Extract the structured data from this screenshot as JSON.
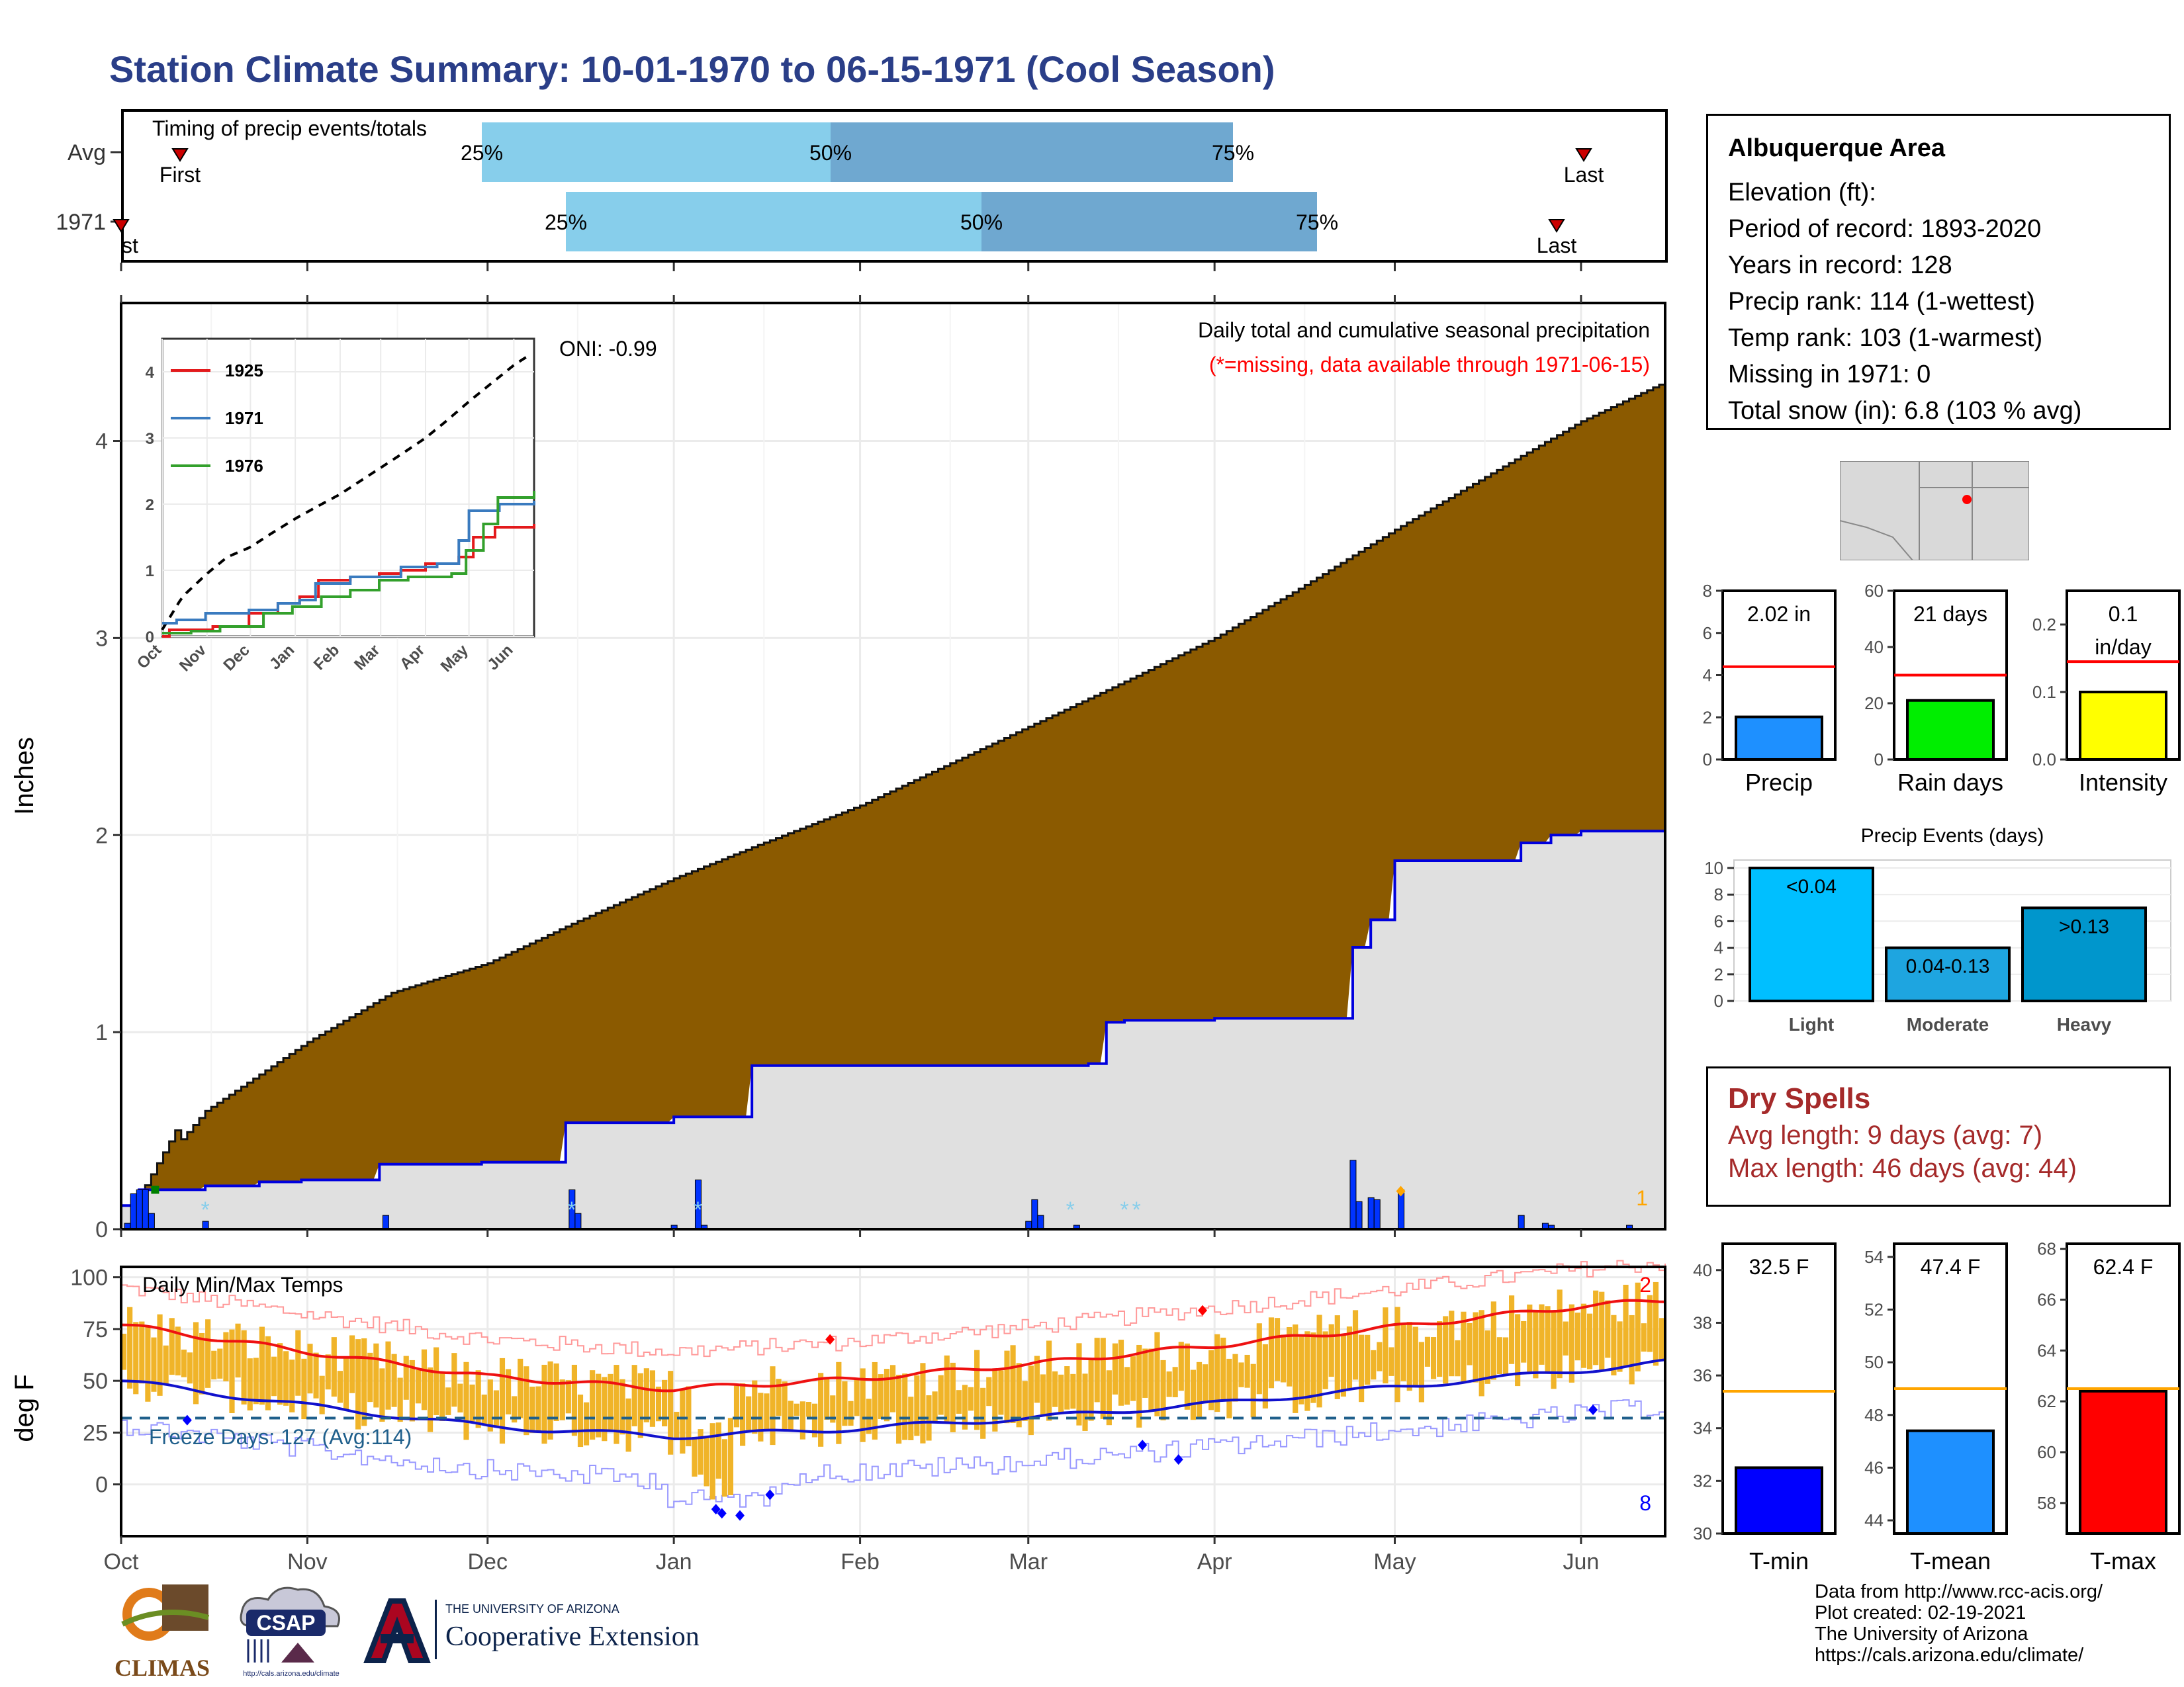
{
  "title": "Station Climate Summary: 10-01-1970 to 06-15-1971 (Cool Season)",
  "timing": {
    "label": "Timing of precip events/totals",
    "rows": [
      {
        "name": "Avg",
        "first_label": "First",
        "last_label": "Last",
        "p25": "25%",
        "p50": "50%",
        "p75": "75%"
      },
      {
        "name": "1971",
        "first_label": "First",
        "last_label": "Last",
        "p25": "25%",
        "p50": "50%",
        "p75": "75%"
      }
    ],
    "colors": {
      "light": "#87ceeb",
      "dark": "#6fa8d0",
      "marker": "#cc0000"
    }
  },
  "info": {
    "title": "Albuquerque Area",
    "lines": [
      "Elevation (ft):",
      "Period of record: 1893-2020",
      "Years in record: 128",
      "Precip rank: 114 (1-wettest)",
      "Temp rank: 103 (1-warmest)",
      "Missing in 1971: 0",
      "Total snow (in): 6.8 (103 % avg)"
    ]
  },
  "main": {
    "ylabel": "Inches",
    "oni": "ONI: -0.99",
    "caption": "Daily total and cumulative seasonal precipitation",
    "missing_note": "(*=missing, data available through 1971-06-15)",
    "right_count": "1",
    "yticks": [
      "0",
      "1",
      "2",
      "3",
      "4"
    ],
    "colors": {
      "avg_fill": "#8b5a00",
      "obs_fill": "#e0e0e0",
      "obs_line": "#0000dd",
      "bars": "#0033ff"
    }
  },
  "inset": {
    "yticks": [
      "0",
      "1",
      "2",
      "3",
      "4"
    ],
    "xticks": [
      "Oct",
      "Nov",
      "Dec",
      "Jan",
      "Feb",
      "Mar",
      "Apr",
      "May",
      "Jun"
    ],
    "legend": [
      {
        "name": "1925",
        "color": "#e31a1c"
      },
      {
        "name": "1971",
        "color": "#3a7bbf"
      },
      {
        "name": "1976",
        "color": "#33a02c"
      }
    ]
  },
  "temps": {
    "ylabel": "deg F",
    "label": "Daily Min/Max Temps",
    "freeze_label": "Freeze Days: 127 (Avg:114)",
    "yticks": [
      "0",
      "25",
      "50",
      "75",
      "100"
    ],
    "top_count": "2",
    "bottom_count": "8",
    "colors": {
      "bars": "#f0b429",
      "max": "#ee1111",
      "min": "#1111cc",
      "freeze": "#1f5f8b"
    }
  },
  "xaxis": {
    "months": [
      "Oct",
      "Nov",
      "Dec",
      "Jan",
      "Feb",
      "Mar",
      "Apr",
      "May",
      "Jun"
    ]
  },
  "precip_bars": [
    {
      "name": "Precip",
      "value": 2.02,
      "avg": 4.4,
      "label": "2.02 in",
      "ylim": [
        0,
        8
      ],
      "yticks": [
        "0",
        "2",
        "4",
        "6",
        "8"
      ],
      "color": "#1e90ff"
    },
    {
      "name": "Rain days",
      "value": 21,
      "avg": 30,
      "label": "21 days",
      "ylim": [
        0,
        60
      ],
      "yticks": [
        "0",
        "20",
        "40",
        "60"
      ],
      "color": "#00ee00"
    },
    {
      "name": "Intensity",
      "value": 0.1,
      "avg": 0.145,
      "label": "0.1 in/day",
      "label_lines": [
        "0.1",
        "in/day"
      ],
      "ylim": [
        0,
        0.25
      ],
      "yticks": [
        "0.0",
        "0.1",
        "0.2"
      ],
      "color": "#ffff00"
    }
  ],
  "events": {
    "title": "Precip Events (days)",
    "yticks": [
      "0",
      "2",
      "4",
      "6",
      "8",
      "10"
    ],
    "bars": [
      {
        "name": "Light",
        "value": 10,
        "label": "<0.04",
        "color": "#00bfff"
      },
      {
        "name": "Moderate",
        "value": 4,
        "label": "0.04-0.13",
        "color": "#1ea5e0"
      },
      {
        "name": "Heavy",
        "value": 7,
        "label": ">0.13",
        "color": "#0096cc"
      }
    ]
  },
  "dry": {
    "title": "Dry Spells",
    "avg": "Avg length: 9 days (avg: 7)",
    "max": "Max length: 46 days (avg: 44)",
    "color": "#a52a2a"
  },
  "temp_bars": [
    {
      "name": "T-min",
      "value": 32.5,
      "avg": 35.4,
      "label": "32.5 F",
      "ylim": [
        30,
        41
      ],
      "yticks": [
        "30",
        "32",
        "34",
        "36",
        "38",
        "40"
      ],
      "color": "#0000ff"
    },
    {
      "name": "T-mean",
      "value": 47.4,
      "avg": 49.0,
      "label": "47.4 F",
      "ylim": [
        43.5,
        54.5
      ],
      "yticks": [
        "44",
        "46",
        "48",
        "50",
        "52",
        "54"
      ],
      "color": "#1e90ff"
    },
    {
      "name": "T-max",
      "value": 62.4,
      "avg": 62.5,
      "label": "62.4 F",
      "ylim": [
        56.8,
        68.2
      ],
      "yticks": [
        "58",
        "60",
        "62",
        "64",
        "66",
        "68"
      ],
      "color": "#ff0000"
    }
  ],
  "footer": {
    "lines": [
      "Data from http://www.rcc-acis.org/",
      "Plot created: 02-19-2021",
      "The University of Arizona",
      "https://cals.arizona.edu/climate/"
    ],
    "climas": "CLIMAS",
    "csap": "CSAP",
    "csap_url": "http://cals.arizona.edu/climate",
    "ua_small": "THE UNIVERSITY OF ARIZONA",
    "ua_big": "Cooperative Extension"
  },
  "chart_data": [
    {
      "type": "area",
      "title": "Daily total and cumulative seasonal precipitation",
      "ylabel": "Inches",
      "ylim": [
        0,
        4.7
      ],
      "x": [
        "1970-10-01",
        "1970-10-15",
        "1970-11-01",
        "1970-11-15",
        "1970-12-01",
        "1970-12-15",
        "1971-01-01",
        "1971-01-15",
        "1971-02-01",
        "1971-02-15",
        "1971-03-01",
        "1971-03-15",
        "1971-04-01",
        "1971-04-15",
        "1971-05-01",
        "1971-05-15",
        "1971-06-01",
        "1971-06-15"
      ],
      "series": [
        {
          "name": "Avg cumulative",
          "values": [
            0.1,
            0.6,
            0.95,
            1.2,
            1.35,
            1.55,
            1.78,
            1.95,
            2.15,
            2.35,
            2.55,
            2.75,
            3.0,
            3.25,
            3.55,
            3.8,
            4.1,
            4.3
          ]
        },
        {
          "name": "1971 cumulative",
          "values": [
            0.2,
            0.25,
            0.27,
            0.34,
            0.34,
            0.55,
            0.57,
            0.83,
            0.84,
            0.85,
            1.06,
            1.07,
            1.08,
            1.43,
            1.9,
            1.97,
            2.02,
            2.02
          ]
        }
      ]
    },
    {
      "type": "line",
      "title": "Daily Min/Max Temps",
      "ylabel": "deg F",
      "ylim": [
        -25,
        105
      ],
      "x": [
        "1970-10-01",
        "1970-11-01",
        "1970-12-01",
        "1971-01-01",
        "1971-02-01",
        "1971-03-01",
        "1971-04-01",
        "1971-05-01",
        "1971-06-01",
        "1971-06-15"
      ],
      "series": [
        {
          "name": "Avg max",
          "values": [
            77,
            64,
            52,
            46,
            51,
            58,
            67,
            76,
            86,
            89
          ]
        },
        {
          "name": "Avg min",
          "values": [
            50,
            38,
            28,
            23,
            27,
            32,
            39,
            47,
            55,
            59
          ]
        }
      ]
    }
  ]
}
